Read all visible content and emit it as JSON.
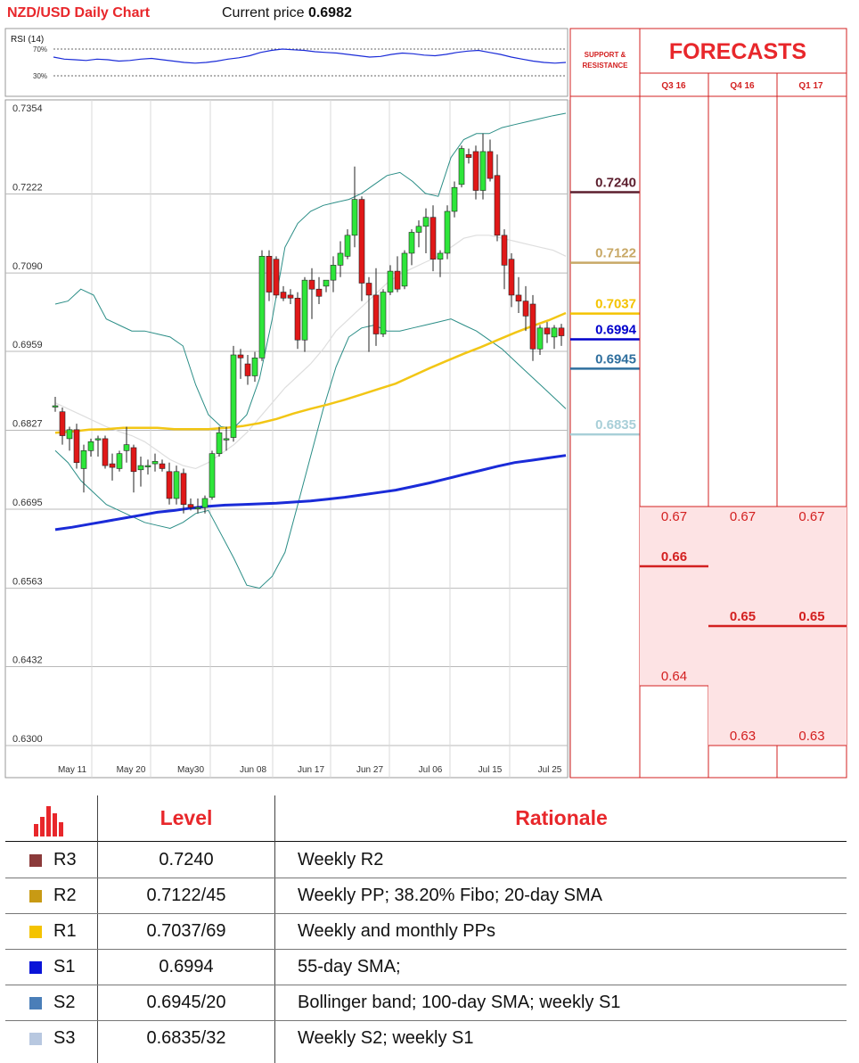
{
  "header": {
    "title": "NZD/USD Daily Chart",
    "price_label": "Current price",
    "price_value": "0.6982"
  },
  "rsi": {
    "label": "RSI (14)",
    "levels": [
      "70%",
      "30%"
    ],
    "values": [
      58,
      55,
      54,
      53,
      55,
      54,
      52,
      53,
      55,
      56,
      54,
      52,
      50,
      49,
      50,
      52,
      55,
      57,
      60,
      65,
      68,
      70,
      69,
      68,
      66,
      65,
      64,
      62,
      60,
      58,
      59,
      62,
      64,
      63,
      61,
      60,
      62,
      65,
      67,
      68,
      65,
      62,
      58,
      55,
      52,
      50,
      49,
      50
    ]
  },
  "chart_data": {
    "type": "candlestick",
    "title": "NZD/USD Daily Chart",
    "y_ticks": [
      "0.7354",
      "0.7222",
      "0.7090",
      "0.6959",
      "0.6827",
      "0.6695",
      "0.6563",
      "0.6432",
      "0.6300"
    ],
    "ylim": [
      0.63,
      0.7354
    ],
    "x_ticks": [
      "May 11",
      "May 20",
      "May30",
      "Jun 08",
      "Jun 17",
      "Jun 27",
      "Jul 06",
      "Jul 15",
      "Jul 25"
    ],
    "candles": [
      {
        "o": 0.6865,
        "h": 0.688,
        "l": 0.6855,
        "c": 0.6865
      },
      {
        "o": 0.6855,
        "h": 0.6862,
        "l": 0.68,
        "c": 0.6815
      },
      {
        "o": 0.681,
        "h": 0.683,
        "l": 0.679,
        "c": 0.6825
      },
      {
        "o": 0.6825,
        "h": 0.6835,
        "l": 0.676,
        "c": 0.677
      },
      {
        "o": 0.676,
        "h": 0.68,
        "l": 0.672,
        "c": 0.679
      },
      {
        "o": 0.679,
        "h": 0.681,
        "l": 0.678,
        "c": 0.6805
      },
      {
        "o": 0.6808,
        "h": 0.6815,
        "l": 0.678,
        "c": 0.681
      },
      {
        "o": 0.681,
        "h": 0.6815,
        "l": 0.676,
        "c": 0.6765
      },
      {
        "o": 0.6768,
        "h": 0.6785,
        "l": 0.674,
        "c": 0.6762
      },
      {
        "o": 0.676,
        "h": 0.679,
        "l": 0.6755,
        "c": 0.6785
      },
      {
        "o": 0.679,
        "h": 0.683,
        "l": 0.677,
        "c": 0.68
      },
      {
        "o": 0.6795,
        "h": 0.68,
        "l": 0.672,
        "c": 0.6755
      },
      {
        "o": 0.6758,
        "h": 0.678,
        "l": 0.673,
        "c": 0.6765
      },
      {
        "o": 0.6765,
        "h": 0.6775,
        "l": 0.675,
        "c": 0.6765
      },
      {
        "o": 0.6768,
        "h": 0.6785,
        "l": 0.6755,
        "c": 0.6772
      },
      {
        "o": 0.6768,
        "h": 0.6775,
        "l": 0.6755,
        "c": 0.676
      },
      {
        "o": 0.6755,
        "h": 0.677,
        "l": 0.67,
        "c": 0.671
      },
      {
        "o": 0.671,
        "h": 0.6765,
        "l": 0.67,
        "c": 0.6755
      },
      {
        "o": 0.6752,
        "h": 0.676,
        "l": 0.6685,
        "c": 0.67
      },
      {
        "o": 0.67,
        "h": 0.671,
        "l": 0.669,
        "c": 0.6695
      },
      {
        "o": 0.6695,
        "h": 0.671,
        "l": 0.6685,
        "c": 0.6695
      },
      {
        "o": 0.6695,
        "h": 0.6715,
        "l": 0.6685,
        "c": 0.671
      },
      {
        "o": 0.6712,
        "h": 0.679,
        "l": 0.6708,
        "c": 0.6785
      },
      {
        "o": 0.6785,
        "h": 0.683,
        "l": 0.678,
        "c": 0.682
      },
      {
        "o": 0.681,
        "h": 0.683,
        "l": 0.679,
        "c": 0.681
      },
      {
        "o": 0.6812,
        "h": 0.6965,
        "l": 0.6805,
        "c": 0.695
      },
      {
        "o": 0.695,
        "h": 0.696,
        "l": 0.691,
        "c": 0.6945
      },
      {
        "o": 0.6935,
        "h": 0.695,
        "l": 0.69,
        "c": 0.6915
      },
      {
        "o": 0.6915,
        "h": 0.6955,
        "l": 0.6905,
        "c": 0.6945
      },
      {
        "o": 0.6945,
        "h": 0.7125,
        "l": 0.694,
        "c": 0.7115
      },
      {
        "o": 0.7115,
        "h": 0.7125,
        "l": 0.704,
        "c": 0.7055
      },
      {
        "o": 0.711,
        "h": 0.7115,
        "l": 0.7045,
        "c": 0.705
      },
      {
        "o": 0.7055,
        "h": 0.7065,
        "l": 0.704,
        "c": 0.7045
      },
      {
        "o": 0.705,
        "h": 0.706,
        "l": 0.7035,
        "c": 0.7045
      },
      {
        "o": 0.7045,
        "h": 0.7055,
        "l": 0.696,
        "c": 0.6975
      },
      {
        "o": 0.6975,
        "h": 0.708,
        "l": 0.6955,
        "c": 0.7075
      },
      {
        "o": 0.7075,
        "h": 0.7095,
        "l": 0.701,
        "c": 0.706
      },
      {
        "o": 0.706,
        "h": 0.708,
        "l": 0.7035,
        "c": 0.7048
      },
      {
        "o": 0.7065,
        "h": 0.7075,
        "l": 0.7055,
        "c": 0.7075
      },
      {
        "o": 0.7075,
        "h": 0.7115,
        "l": 0.7055,
        "c": 0.71
      },
      {
        "o": 0.71,
        "h": 0.714,
        "l": 0.708,
        "c": 0.712
      },
      {
        "o": 0.7115,
        "h": 0.716,
        "l": 0.711,
        "c": 0.715
      },
      {
        "o": 0.715,
        "h": 0.7265,
        "l": 0.713,
        "c": 0.721
      },
      {
        "o": 0.721,
        "h": 0.7215,
        "l": 0.704,
        "c": 0.707
      },
      {
        "o": 0.707,
        "h": 0.708,
        "l": 0.6955,
        "c": 0.705
      },
      {
        "o": 0.705,
        "h": 0.7095,
        "l": 0.6965,
        "c": 0.6985
      },
      {
        "o": 0.6985,
        "h": 0.706,
        "l": 0.698,
        "c": 0.7055
      },
      {
        "o": 0.7055,
        "h": 0.71,
        "l": 0.705,
        "c": 0.709
      },
      {
        "o": 0.709,
        "h": 0.7115,
        "l": 0.7055,
        "c": 0.706
      },
      {
        "o": 0.7065,
        "h": 0.7125,
        "l": 0.706,
        "c": 0.712
      },
      {
        "o": 0.712,
        "h": 0.716,
        "l": 0.71,
        "c": 0.7155
      },
      {
        "o": 0.7155,
        "h": 0.7175,
        "l": 0.713,
        "c": 0.7165
      },
      {
        "o": 0.7165,
        "h": 0.7195,
        "l": 0.712,
        "c": 0.718
      },
      {
        "o": 0.718,
        "h": 0.72,
        "l": 0.709,
        "c": 0.711
      },
      {
        "o": 0.711,
        "h": 0.7125,
        "l": 0.708,
        "c": 0.712
      },
      {
        "o": 0.712,
        "h": 0.72,
        "l": 0.711,
        "c": 0.719
      },
      {
        "o": 0.719,
        "h": 0.724,
        "l": 0.718,
        "c": 0.723
      },
      {
        "o": 0.7235,
        "h": 0.73,
        "l": 0.723,
        "c": 0.7295
      },
      {
        "o": 0.7285,
        "h": 0.7295,
        "l": 0.727,
        "c": 0.728
      },
      {
        "o": 0.729,
        "h": 0.73,
        "l": 0.721,
        "c": 0.7225
      },
      {
        "o": 0.7225,
        "h": 0.732,
        "l": 0.721,
        "c": 0.729
      },
      {
        "o": 0.729,
        "h": 0.731,
        "l": 0.724,
        "c": 0.7245
      },
      {
        "o": 0.725,
        "h": 0.7285,
        "l": 0.714,
        "c": 0.715
      },
      {
        "o": 0.715,
        "h": 0.716,
        "l": 0.706,
        "c": 0.71
      },
      {
        "o": 0.711,
        "h": 0.712,
        "l": 0.703,
        "c": 0.705
      },
      {
        "o": 0.705,
        "h": 0.708,
        "l": 0.702,
        "c": 0.704
      },
      {
        "o": 0.704,
        "h": 0.7065,
        "l": 0.699,
        "c": 0.7015
      },
      {
        "o": 0.7035,
        "h": 0.705,
        "l": 0.694,
        "c": 0.696
      },
      {
        "o": 0.696,
        "h": 0.7,
        "l": 0.695,
        "c": 0.6995
      },
      {
        "o": 0.6995,
        "h": 0.7005,
        "l": 0.697,
        "c": 0.6985
      },
      {
        "o": 0.698,
        "h": 0.7,
        "l": 0.696,
        "c": 0.6995
      },
      {
        "o": 0.6995,
        "h": 0.7002,
        "l": 0.6965,
        "c": 0.6982
      }
    ],
    "sma55": [
      0.682,
      0.6822,
      0.6825,
      0.6826,
      0.6828,
      0.6828,
      0.6828,
      0.6826,
      0.6826,
      0.6826,
      0.6828,
      0.6831,
      0.6836,
      0.6843,
      0.6852,
      0.686,
      0.6867,
      0.6875,
      0.6884,
      0.6893,
      0.6902,
      0.6915,
      0.6928,
      0.694,
      0.6952,
      0.6963,
      0.6975,
      0.6987,
      0.6998,
      0.7008,
      0.702
    ],
    "sma100": [
      0.6658,
      0.6662,
      0.6667,
      0.6672,
      0.6677,
      0.6682,
      0.6687,
      0.669,
      0.6694,
      0.6697,
      0.6699,
      0.67,
      0.6701,
      0.6702,
      0.6704,
      0.6706,
      0.6709,
      0.6712,
      0.6716,
      0.672,
      0.6724,
      0.673,
      0.6736,
      0.6743,
      0.675,
      0.6757,
      0.6764,
      0.677,
      0.6774,
      0.6778,
      0.6782
    ],
    "bb_upper": [
      0.7035,
      0.704,
      0.706,
      0.705,
      0.701,
      0.7,
      0.699,
      0.699,
      0.6985,
      0.698,
      0.6965,
      0.69,
      0.685,
      0.683,
      0.6828,
      0.685,
      0.691,
      0.701,
      0.713,
      0.717,
      0.719,
      0.72,
      0.7205,
      0.721,
      0.722,
      0.7235,
      0.725,
      0.7255,
      0.724,
      0.722,
      0.7215,
      0.728,
      0.731,
      0.732,
      0.732,
      0.733,
      0.7335,
      0.734,
      0.7345,
      0.735,
      0.7354
    ],
    "bb_lower": [
      0.679,
      0.677,
      0.674,
      0.672,
      0.67,
      0.669,
      0.668,
      0.667,
      0.6665,
      0.666,
      0.667,
      0.6685,
      0.669,
      0.665,
      0.661,
      0.6565,
      0.656,
      0.658,
      0.662,
      0.67,
      0.678,
      0.686,
      0.693,
      0.698,
      0.6995,
      0.7,
      0.699,
      0.699,
      0.6995,
      0.7,
      0.7005,
      0.701,
      0.7,
      0.699,
      0.6975,
      0.696,
      0.694,
      0.692,
      0.69,
      0.688,
      0.686
    ],
    "sma20": [
      0.687,
      0.686,
      0.685,
      0.684,
      0.683,
      0.6822,
      0.6815,
      0.6805,
      0.679,
      0.6775,
      0.6765,
      0.676,
      0.677,
      0.6785,
      0.68,
      0.682,
      0.6845,
      0.687,
      0.6895,
      0.6915,
      0.6935,
      0.696,
      0.699,
      0.701,
      0.703,
      0.705,
      0.707,
      0.7085,
      0.7095,
      0.7105,
      0.7115,
      0.713,
      0.7145,
      0.715,
      0.715,
      0.7145,
      0.714,
      0.7135,
      0.713,
      0.7125,
      0.7115
    ]
  },
  "levels_panel": {
    "header": "SUPPORT & RESISTANCE",
    "levels": [
      {
        "label": "0.7240",
        "value": 0.724,
        "color": "#5c1f2e"
      },
      {
        "label": "0.7122",
        "value": 0.7122,
        "color": "#c8a866"
      },
      {
        "label": "0.7037",
        "value": 0.7037,
        "color": "#f4c300"
      },
      {
        "label": "0.6994",
        "value": 0.6994,
        "color": "#0000cc"
      },
      {
        "label": "0.6945",
        "value": 0.6945,
        "color": "#2f6f9e"
      },
      {
        "label": "0.6835",
        "value": 0.6835,
        "color": "#a8cfd8"
      }
    ]
  },
  "forecasts": {
    "title": "FORECASTS",
    "columns": [
      "Q3 16",
      "Q4 16",
      "Q1 17"
    ],
    "q3": [
      {
        "label": "0.67",
        "value": 0.67
      },
      {
        "label": "0.66",
        "value": 0.66,
        "bold": true
      },
      {
        "label": "0.64",
        "value": 0.64
      }
    ],
    "q4": [
      {
        "label": "0.67",
        "value": 0.67
      },
      {
        "label": "0.65",
        "value": 0.65,
        "bold": true
      },
      {
        "label": "0.63",
        "value": 0.63
      }
    ],
    "q1": [
      {
        "label": "0.67",
        "value": 0.67
      },
      {
        "label": "0.65",
        "value": 0.65,
        "bold": true
      },
      {
        "label": "0.63",
        "value": 0.63
      }
    ]
  },
  "table": {
    "header_level": "Level",
    "header_rationale": "Rationale",
    "rows": [
      {
        "code": "R3",
        "level": "0.7240",
        "rationale": "Weekly R2",
        "color": "#8b3a3a"
      },
      {
        "code": "R2",
        "level": "0.7122/45",
        "rationale": "Weekly PP; 38.20% Fibo; 20-day SMA",
        "color": "#c89a14"
      },
      {
        "code": "R1",
        "level": "0.7037/69",
        "rationale": "Weekly and monthly PPs",
        "color": "#f4c300"
      },
      {
        "code": "S1",
        "level": "0.6994",
        "rationale": "55-day SMA;",
        "color": "#0a14d8"
      },
      {
        "code": "S2",
        "level": "0.6945/20",
        "rationale": "Bollinger band; 100-day SMA; weekly S1",
        "color": "#4a7eb8"
      },
      {
        "code": "S3",
        "level": "0.6835/32",
        "rationale": "Weekly S2; weekly S1",
        "color": "#b8c8e0"
      }
    ]
  }
}
